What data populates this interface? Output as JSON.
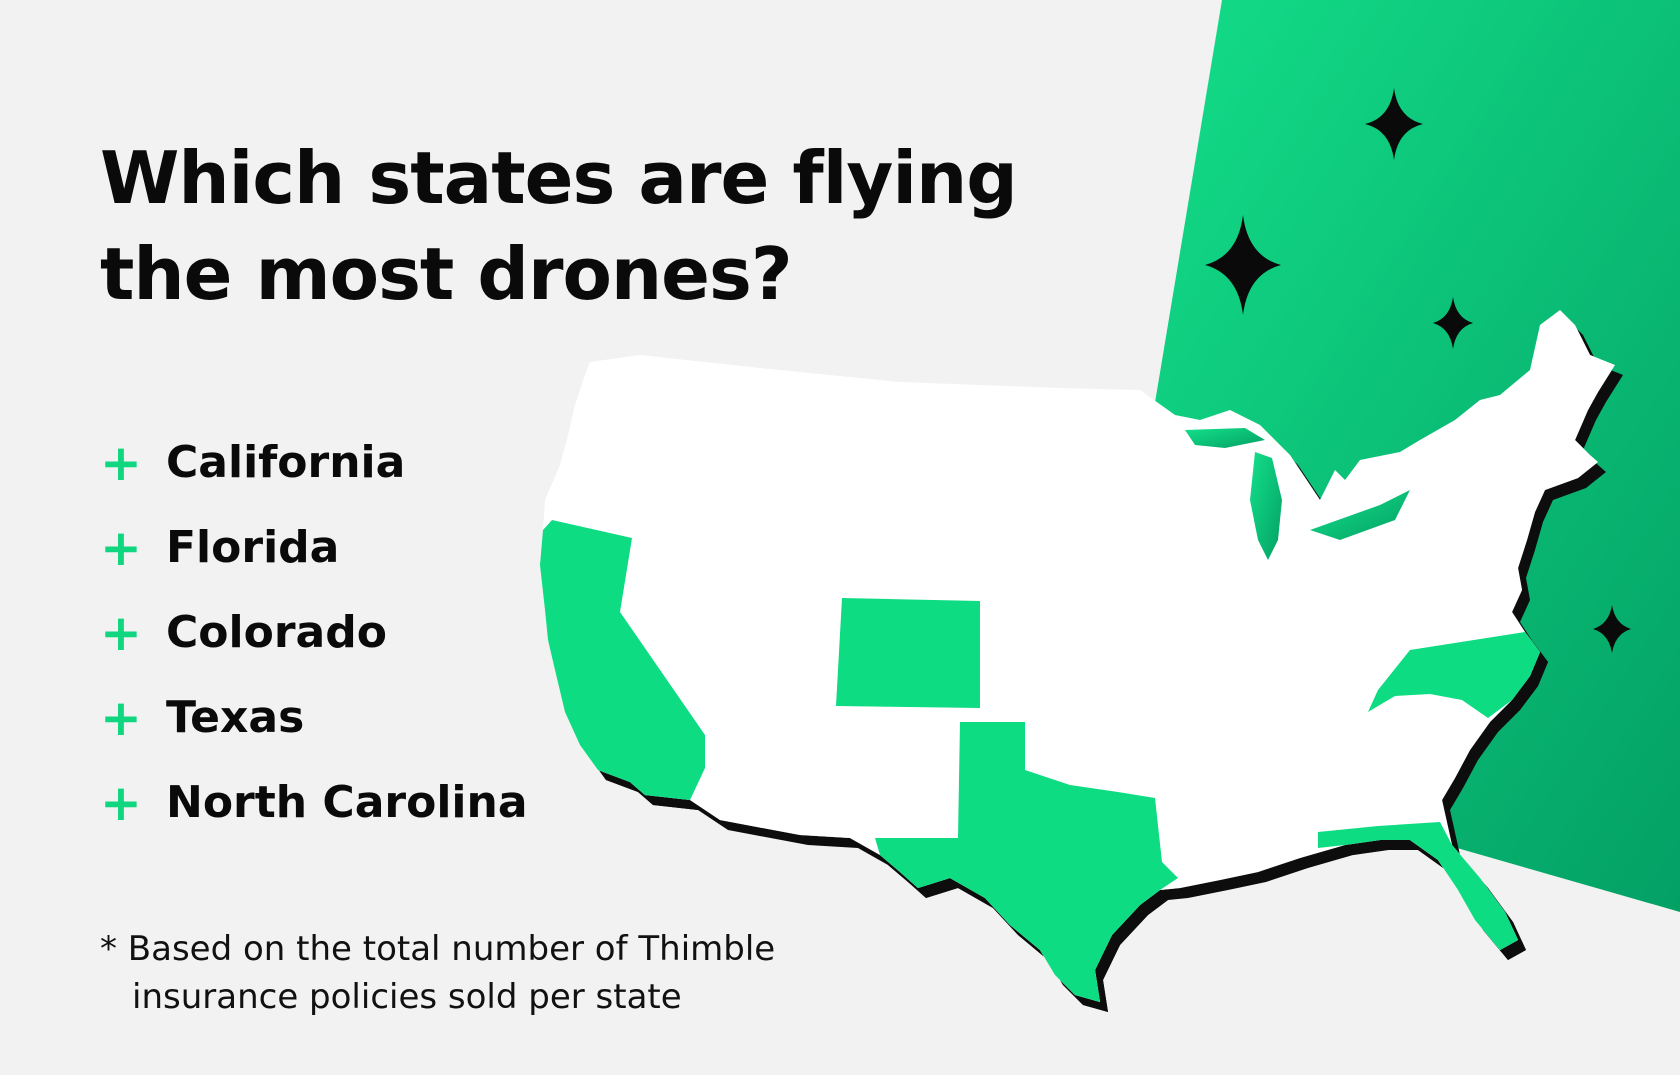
{
  "title": {
    "line1": "Which states are flying",
    "line2": "the most drones?"
  },
  "states": [
    {
      "label": "California"
    },
    {
      "label": "Florida"
    },
    {
      "label": "Colorado"
    },
    {
      "label": "Texas"
    },
    {
      "label": "North Carolina"
    }
  ],
  "footnote": {
    "line1": "* Based on the total number of Thimble",
    "line2": "insurance policies sold per state"
  },
  "icons": {
    "bullet": "plus-icon",
    "sparkle": "sparkle-icon"
  },
  "colors": {
    "background": "#f2f2f2",
    "accent_green": "#10d67f",
    "wedge_light": "#14e08a",
    "wedge_dark": "#03a064",
    "map_fill": "#ffffff",
    "highlight_fill": "#0ddc82",
    "text": "#0a0a0a"
  }
}
